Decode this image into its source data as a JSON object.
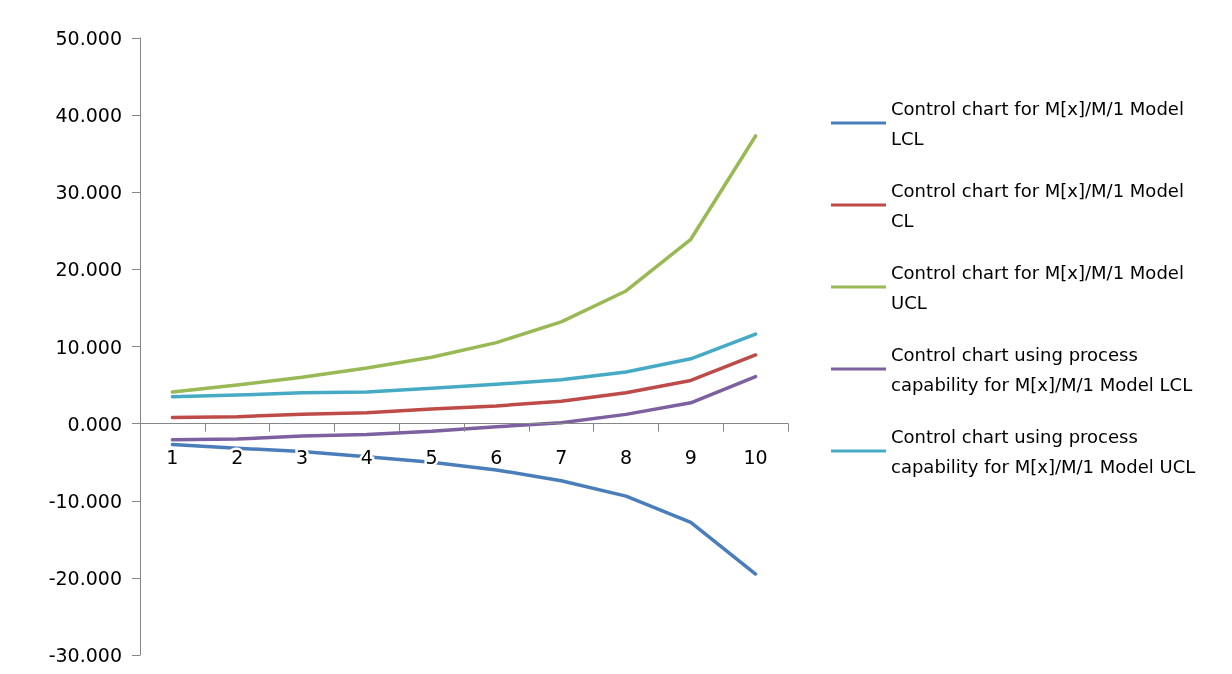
{
  "chart_data": {
    "type": "line",
    "categories": [
      "1",
      "2",
      "3",
      "4",
      "5",
      "6",
      "7",
      "8",
      "9",
      "10"
    ],
    "series": [
      {
        "name": "Control chart for M[x]/M/1 Model LCL",
        "color": "#4a7ebb",
        "values": [
          -2.7,
          -3.2,
          -3.6,
          -4.3,
          -5.0,
          -6.0,
          -7.4,
          -9.4,
          -12.8,
          -19.5
        ]
      },
      {
        "name": "Control chart for M[x]/M/1 Model CL",
        "color": "#be4b48",
        "values": [
          0.8,
          0.9,
          1.2,
          1.4,
          1.9,
          2.3,
          2.9,
          4.0,
          5.6,
          8.9
        ]
      },
      {
        "name": "Control chart for M[x]/M/1 Model UCL",
        "color": "#98b954",
        "values": [
          4.1,
          5.0,
          6.0,
          7.2,
          8.6,
          10.5,
          13.2,
          17.2,
          23.9,
          37.3
        ]
      },
      {
        "name": "Control chart using process capability for M[x]/M/1 Model LCL",
        "color": "#7d60a0",
        "values": [
          -2.1,
          -2.0,
          -1.6,
          -1.4,
          -1.0,
          -0.4,
          0.1,
          1.2,
          2.7,
          6.1
        ]
      },
      {
        "name": "Control chart using process capability for M[x]/M/1 Model UCL",
        "color": "#46aac5",
        "values": [
          3.5,
          3.7,
          4.0,
          4.1,
          4.6,
          5.1,
          5.7,
          6.7,
          8.4,
          11.6
        ]
      }
    ],
    "ylim": [
      -30,
      50
    ],
    "yticks": [
      {
        "value": -30,
        "label": "-30.000"
      },
      {
        "value": -20,
        "label": "-20.000"
      },
      {
        "value": -10,
        "label": "-10.000"
      },
      {
        "value": 0,
        "label": "0.000"
      },
      {
        "value": 10,
        "label": "10.000"
      },
      {
        "value": 20,
        "label": "20.000"
      },
      {
        "value": 30,
        "label": "30.000"
      },
      {
        "value": 40,
        "label": "40.000"
      },
      {
        "value": 50,
        "label": "50.000"
      }
    ],
    "grid": false,
    "legend": "right",
    "marker": "none",
    "line_style": "solid"
  }
}
